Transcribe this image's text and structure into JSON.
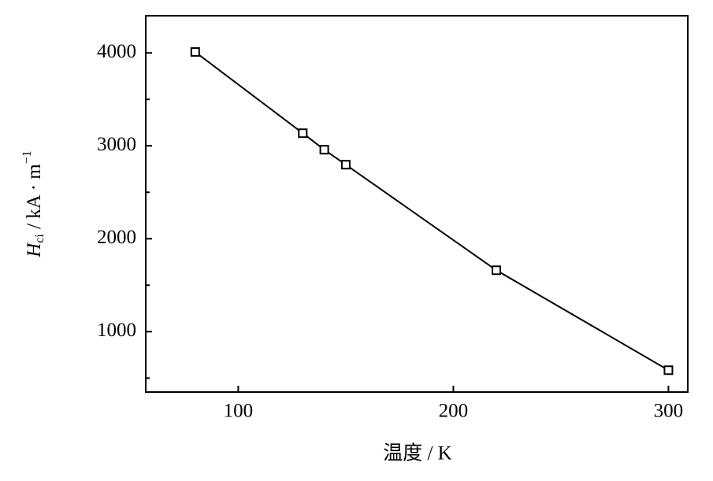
{
  "chart_data": {
    "type": "line",
    "xlabel": "温度 / K",
    "ylabel": {
      "symbol": "H",
      "sub": "ci",
      "unit": " / kA · m",
      "sup": "−1"
    },
    "x": [
      80,
      130,
      140,
      150,
      220,
      300
    ],
    "series": [
      {
        "color": "#000000",
        "values": [
          4010,
          3136,
          2958,
          2797,
          1661,
          585
        ]
      }
    ],
    "xlim": [
      57,
      309
    ],
    "ylim": [
      350,
      4400
    ],
    "xticks": [
      100,
      200,
      300
    ],
    "yticks": [
      1000,
      2000,
      3000,
      4000
    ],
    "yminor": [
      500,
      1500,
      2500,
      3500
    ],
    "marker": "square"
  }
}
